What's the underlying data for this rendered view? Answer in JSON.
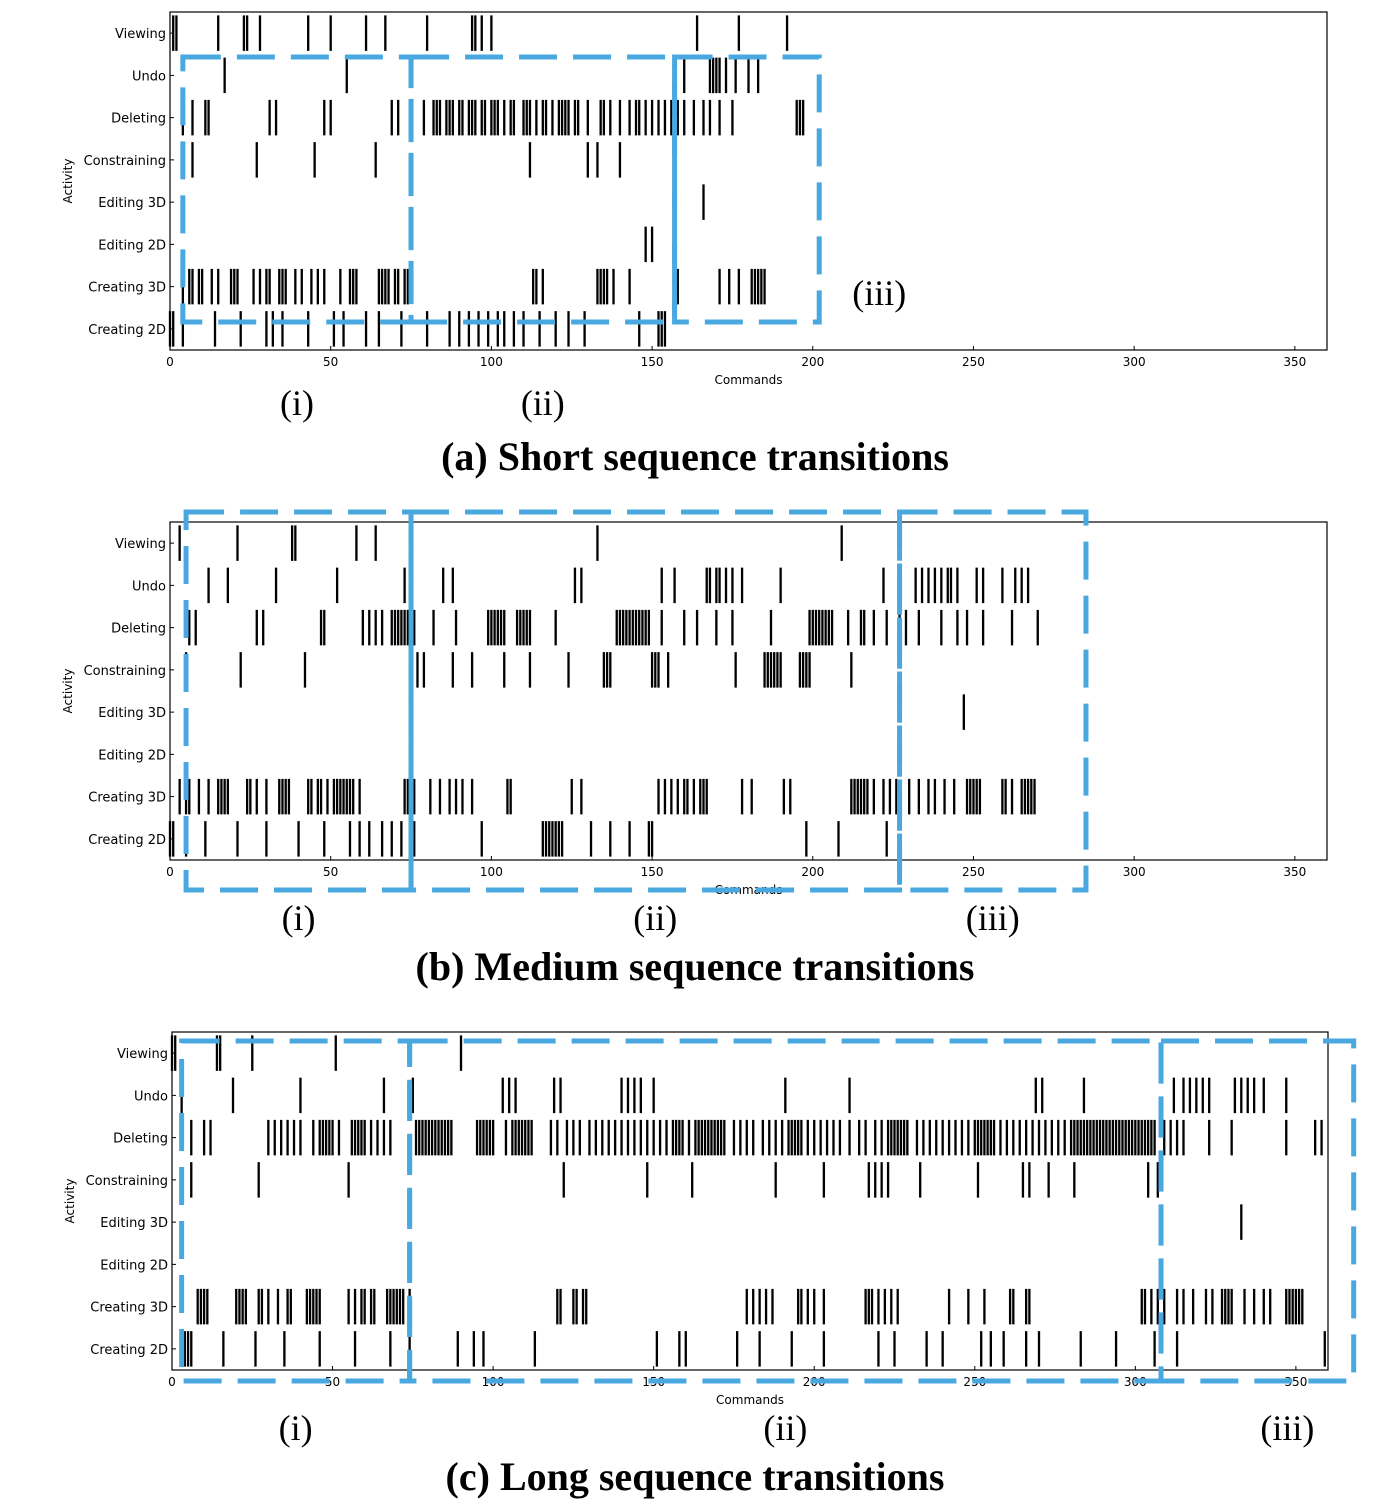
{
  "chart_data": [
    {
      "type": "event-raster",
      "xlabel": "Commands",
      "ylabel": "Activity",
      "xlim": [
        0,
        360
      ],
      "xticks": [
        0,
        50,
        100,
        150,
        200,
        250,
        300,
        350
      ],
      "categories": [
        "Viewing",
        "Undo",
        "Deleting",
        "Constraining",
        "Editing 3D",
        "Editing 2D",
        "Creating 3D",
        "Creating 2D"
      ],
      "regions": [
        {
          "label": "(i)",
          "start": 4,
          "end": 75
        },
        {
          "label": "(ii)",
          "start": 75,
          "end": 157
        },
        {
          "label": "(iii)",
          "start": 157,
          "end": 202
        }
      ],
      "caption": "(a) Short sequence transitions",
      "events": {
        "Viewing": [
          1,
          2,
          15,
          23,
          24,
          28,
          43,
          50,
          61,
          67,
          80,
          94,
          95,
          97,
          100,
          164,
          177,
          192
        ],
        "Undo": [
          17,
          55,
          160,
          168,
          169,
          170,
          171,
          173,
          176,
          180,
          183
        ],
        "Deleting": [
          4,
          7,
          11,
          12,
          31,
          33,
          48,
          50,
          69,
          71,
          79,
          82,
          83,
          84,
          86,
          87,
          88,
          90,
          91,
          93,
          94,
          95,
          97,
          98,
          100,
          101,
          102,
          104,
          106,
          107,
          110,
          111,
          112,
          114,
          116,
          117,
          119,
          121,
          122,
          123,
          124,
          126,
          127,
          130,
          134,
          135,
          137,
          140,
          143,
          145,
          146,
          148,
          150,
          152,
          154,
          156,
          158,
          160,
          163,
          166,
          168,
          171,
          175,
          195,
          196,
          197
        ],
        "Constraining": [
          7,
          27,
          45,
          64,
          112,
          130,
          133,
          140
        ],
        "Editing 3D": [
          166
        ],
        "Editing 2D": [
          148,
          150
        ],
        "Creating 3D": [
          4,
          6,
          7,
          9,
          10,
          13,
          15,
          19,
          20,
          21,
          26,
          28,
          30,
          31,
          34,
          35,
          36,
          39,
          41,
          44,
          46,
          48,
          53,
          56,
          57,
          58,
          65,
          66,
          67,
          68,
          70,
          71,
          73,
          74,
          113,
          114,
          116,
          133,
          134,
          135,
          136,
          138,
          143,
          158,
          171,
          174,
          177,
          181,
          182,
          183,
          184,
          185
        ],
        "Creating 2D": [
          0,
          1,
          4,
          14,
          22,
          30,
          32,
          35,
          43,
          51,
          54,
          61,
          65,
          72,
          80,
          87,
          90,
          93,
          96,
          99,
          102,
          104,
          107,
          110,
          115,
          120,
          124,
          129,
          146,
          152,
          153,
          154
        ]
      }
    },
    {
      "type": "event-raster",
      "xlabel": "Commands",
      "ylabel": "Activity",
      "xlim": [
        0,
        360
      ],
      "xticks": [
        0,
        50,
        100,
        150,
        200,
        250,
        300,
        350
      ],
      "categories": [
        "Viewing",
        "Undo",
        "Deleting",
        "Constraining",
        "Editing 3D",
        "Editing 2D",
        "Creating 3D",
        "Creating 2D"
      ],
      "regions": [
        {
          "label": "(i)",
          "start": 5,
          "end": 75
        },
        {
          "label": "(ii)",
          "start": 75,
          "end": 227
        },
        {
          "label": "(iii)",
          "start": 227,
          "end": 285
        }
      ],
      "caption": "(b) Medium sequence transitions",
      "events": {
        "Viewing": [
          3,
          21,
          38,
          39,
          58,
          64,
          133,
          209
        ],
        "Undo": [
          12,
          18,
          33,
          52,
          73,
          85,
          88,
          126,
          128,
          153,
          157,
          167,
          168,
          170,
          171,
          173,
          175,
          178,
          190,
          222,
          232,
          234,
          236,
          238,
          240,
          242,
          243,
          245,
          251,
          253,
          259,
          263,
          265,
          267
        ],
        "Deleting": [
          6,
          8,
          27,
          29,
          47,
          48,
          60,
          62,
          64,
          66,
          69,
          70,
          71,
          72,
          73,
          74,
          75,
          76,
          82,
          89,
          99,
          100,
          101,
          102,
          103,
          104,
          108,
          109,
          110,
          111,
          112,
          120,
          139,
          140,
          141,
          142,
          143,
          144,
          145,
          146,
          147,
          148,
          149,
          153,
          160,
          164,
          170,
          175,
          187,
          199,
          200,
          201,
          202,
          203,
          204,
          205,
          206,
          211,
          215,
          216,
          219,
          223,
          227,
          229,
          233,
          240,
          245,
          248,
          253,
          262,
          270
        ],
        "Constraining": [
          5,
          22,
          42,
          77,
          79,
          88,
          94,
          104,
          112,
          124,
          135,
          136,
          137,
          150,
          151,
          152,
          155,
          176,
          185,
          186,
          187,
          188,
          189,
          190,
          196,
          197,
          198,
          199,
          212
        ],
        "Editing 3D": [
          247
        ],
        "Editing 2D": [],
        "Creating 3D": [
          3,
          5,
          6,
          9,
          12,
          15,
          16,
          17,
          18,
          24,
          25,
          27,
          30,
          34,
          35,
          36,
          37,
          43,
          44,
          46,
          47,
          49,
          51,
          52,
          53,
          54,
          55,
          56,
          57,
          59,
          73,
          74,
          76,
          81,
          84,
          87,
          89,
          91,
          94,
          105,
          106,
          125,
          128,
          152,
          154,
          156,
          158,
          160,
          161,
          163,
          165,
          166,
          167,
          178,
          181,
          191,
          193,
          212,
          213,
          214,
          215,
          216,
          217,
          219,
          222,
          224,
          226,
          230,
          233,
          236,
          238,
          241,
          244,
          248,
          249,
          250,
          251,
          252,
          259,
          260,
          262,
          265,
          266,
          267,
          268,
          269
        ],
        "Creating 2D": [
          0,
          1,
          5,
          11,
          21,
          30,
          40,
          48,
          56,
          59,
          62,
          66,
          69,
          72,
          76,
          97,
          116,
          117,
          118,
          119,
          120,
          121,
          122,
          131,
          137,
          143,
          149,
          150,
          198,
          208,
          223
        ]
      }
    },
    {
      "type": "event-raster",
      "xlabel": "Commands",
      "ylabel": "Activity",
      "xlim": [
        0,
        360
      ],
      "xticks": [
        0,
        50,
        100,
        150,
        200,
        250,
        300,
        350
      ],
      "categories": [
        "Viewing",
        "Undo",
        "Deleting",
        "Constraining",
        "Editing 3D",
        "Editing 2D",
        "Creating 3D",
        "Creating 2D"
      ],
      "regions": [
        {
          "label": "(i)",
          "start": 3,
          "end": 74
        },
        {
          "label": "(ii)",
          "start": 74,
          "end": 308
        },
        {
          "label": "(iii)",
          "start": 308,
          "end": 368
        }
      ],
      "caption": "(c) Long sequence transitions",
      "events": {
        "Viewing": [
          0,
          1,
          14,
          15,
          25,
          51,
          90
        ],
        "Undo": [
          3,
          19,
          40,
          66,
          75,
          103,
          105,
          107,
          119,
          121,
          140,
          142,
          144,
          146,
          150,
          191,
          211,
          269,
          271,
          284,
          312,
          315,
          317,
          319,
          321,
          323,
          331,
          333,
          335,
          337,
          340,
          347
        ],
        "Deleting": [
          6,
          10,
          12,
          30,
          32,
          34,
          36,
          38,
          40,
          44,
          46,
          47,
          48,
          49,
          50,
          52,
          56,
          57,
          58,
          59,
          60,
          62,
          64,
          66,
          68,
          76,
          77,
          78,
          79,
          80,
          81,
          82,
          83,
          84,
          85,
          86,
          87,
          95,
          96,
          97,
          98,
          99,
          100,
          104,
          106,
          107,
          108,
          109,
          110,
          111,
          112,
          118,
          120,
          123,
          125,
          127,
          130,
          132,
          134,
          136,
          138,
          140,
          142,
          144,
          146,
          148,
          150,
          152,
          154,
          156,
          157,
          158,
          159,
          161,
          163,
          164,
          165,
          166,
          167,
          168,
          169,
          170,
          171,
          172,
          175,
          177,
          179,
          181,
          184,
          186,
          188,
          190,
          192,
          193,
          194,
          195,
          196,
          198,
          200,
          202,
          204,
          206,
          208,
          211,
          214,
          216,
          219,
          221,
          223,
          224,
          225,
          226,
          227,
          228,
          229,
          232,
          234,
          236,
          238,
          240,
          242,
          244,
          246,
          248,
          250,
          251,
          252,
          253,
          254,
          255,
          256,
          258,
          260,
          262,
          264,
          266,
          268,
          270,
          272,
          274,
          276,
          278,
          280,
          281,
          282,
          283,
          284,
          285,
          286,
          287,
          288,
          289,
          290,
          291,
          292,
          293,
          294,
          295,
          296,
          297,
          298,
          299,
          300,
          301,
          302,
          303,
          304,
          305,
          306,
          309,
          311,
          313,
          315,
          323,
          330,
          347,
          356,
          358
        ],
        "Constraining": [
          6,
          27,
          55,
          122,
          148,
          162,
          188,
          203,
          217,
          219,
          221,
          223,
          233,
          251,
          265,
          267,
          273,
          281,
          304,
          307
        ],
        "Editing 3D": [
          333
        ],
        "Editing 2D": [],
        "Creating 3D": [
          8,
          9,
          10,
          11,
          20,
          21,
          22,
          23,
          27,
          28,
          30,
          33,
          36,
          37,
          42,
          43,
          44,
          45,
          46,
          55,
          57,
          59,
          60,
          62,
          63,
          67,
          68,
          69,
          70,
          71,
          72,
          74,
          120,
          121,
          125,
          126,
          128,
          129,
          179,
          181,
          183,
          185,
          187,
          195,
          196,
          198,
          200,
          203,
          216,
          217,
          218,
          220,
          222,
          224,
          226,
          242,
          248,
          253,
          261,
          262,
          266,
          267,
          302,
          303,
          305,
          307,
          309,
          313,
          315,
          318,
          322,
          324,
          327,
          328,
          329,
          330,
          334,
          337,
          340,
          342,
          347,
          348,
          349,
          350,
          351,
          352
        ],
        "Creating 2D": [
          3,
          4,
          5,
          6,
          16,
          26,
          35,
          46,
          57,
          68,
          74,
          89,
          94,
          97,
          113,
          151,
          158,
          160,
          176,
          183,
          193,
          203,
          220,
          225,
          235,
          240,
          252,
          255,
          259,
          266,
          270,
          283,
          294,
          306,
          313,
          359
        ]
      }
    }
  ]
}
